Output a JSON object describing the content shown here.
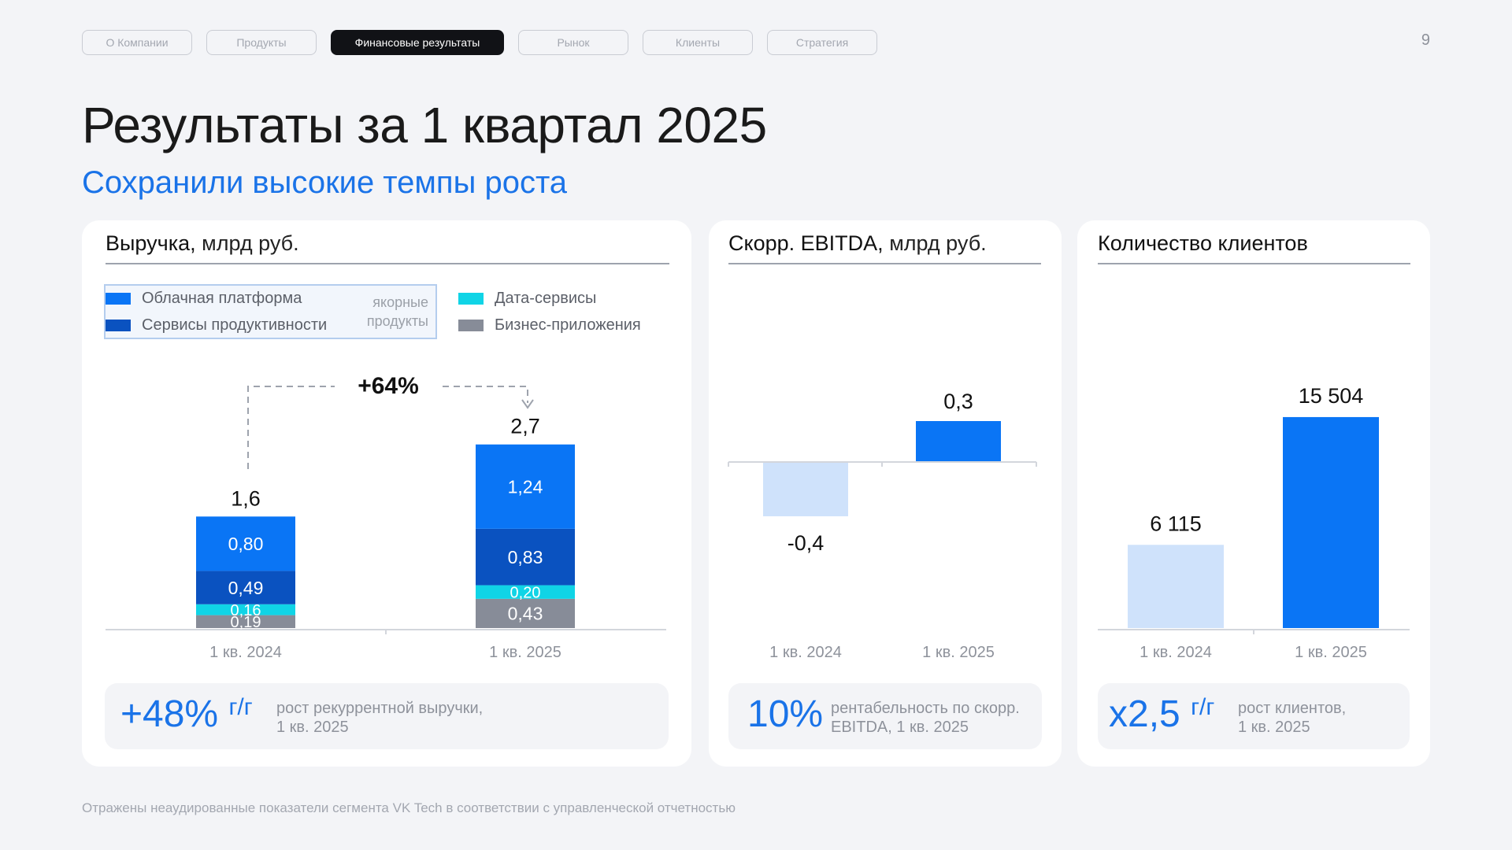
{
  "nav": {
    "tabs": [
      {
        "label": "О Компании",
        "active": false
      },
      {
        "label": "Продукты",
        "active": false
      },
      {
        "label": "Финансовые результаты",
        "active": true
      },
      {
        "label": "Рынок",
        "active": false
      },
      {
        "label": "Клиенты",
        "active": false
      },
      {
        "label": "Стратегия",
        "active": false
      }
    ],
    "page_number": "9"
  },
  "title": "Результаты за 1 квартал 2025",
  "subtitle": "Сохранили высокие темпы роста",
  "colors": {
    "cloud": "#0a75f5",
    "productivity": "#0a52c0",
    "data": "#10d4e6",
    "business": "#878c98",
    "light_bar": "#cfe2fb",
    "accent": "#1a73e8"
  },
  "revenue": {
    "title": "Выручка,",
    "unit": "млрд руб.",
    "legend": {
      "cloud": "Облачная платформа",
      "productivity": "Сервисы продуктивности",
      "anchor": "якорные продукты",
      "data": "Дата-сервисы",
      "business": "Бизнес-приложения"
    },
    "growth_label": "+64%",
    "kpi": {
      "big": "+48%",
      "sup": "г/г",
      "text1": "рост рекуррентной выручки,",
      "text2": "1 кв. 2025"
    }
  },
  "ebitda": {
    "title": "Скорр. EBITDA,",
    "unit": "млрд руб.",
    "kpi": {
      "big": "10%",
      "text1": "рентабельность по скорр.",
      "text2": "EBITDA, 1 кв. 2025"
    }
  },
  "clients": {
    "title": "Количество клиентов",
    "kpi": {
      "big": "х2,5",
      "sup": "г/г",
      "text1": "рост клиентов,",
      "text2": "1 кв. 2025"
    }
  },
  "footnote": "Отражены неаудированные показатели сегмента VK Tech в соответствии с управленческой отчетностью",
  "chart_data": [
    {
      "type": "bar",
      "stacked": true,
      "title": "Выручка, млрд руб.",
      "categories": [
        "1 кв. 2024",
        "1 кв. 2025"
      ],
      "totals": [
        "1,6",
        "2,7"
      ],
      "series": [
        {
          "name": "Бизнес-приложения",
          "values": [
            0.19,
            0.43
          ],
          "labels": [
            "0,19",
            "0,43"
          ],
          "color": "#878c98"
        },
        {
          "name": "Дата-сервисы",
          "values": [
            0.16,
            0.2
          ],
          "labels": [
            "0,16",
            "0,20"
          ],
          "color": "#10d4e6"
        },
        {
          "name": "Сервисы продуктивности",
          "values": [
            0.49,
            0.83
          ],
          "labels": [
            "0,49",
            "0,83"
          ],
          "color": "#0a52c0"
        },
        {
          "name": "Облачная платформа",
          "values": [
            0.8,
            1.24
          ],
          "labels": [
            "0,80",
            "1,24"
          ],
          "color": "#0a75f5"
        }
      ]
    },
    {
      "type": "bar",
      "title": "Скорр. EBITDA, млрд руб.",
      "categories": [
        "1 кв. 2024",
        "1 кв. 2025"
      ],
      "values": [
        -0.4,
        0.3
      ],
      "labels": [
        "-0,4",
        "0,3"
      ]
    },
    {
      "type": "bar",
      "title": "Количество клиентов",
      "categories": [
        "1 кв. 2024",
        "1 кв. 2025"
      ],
      "values": [
        6115,
        15504
      ],
      "labels": [
        "6 115",
        "15 504"
      ]
    }
  ]
}
